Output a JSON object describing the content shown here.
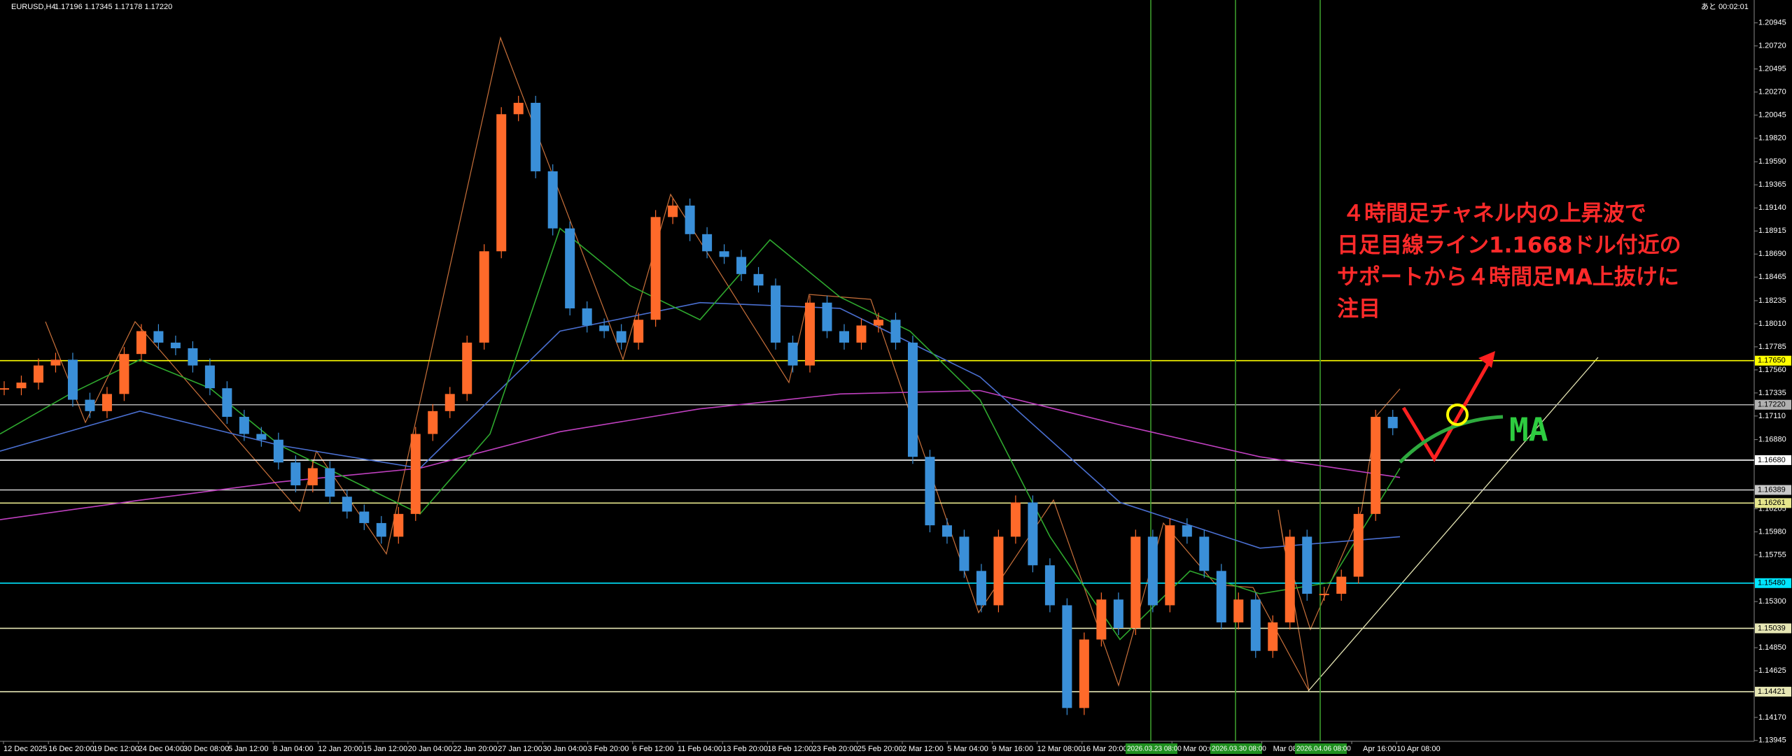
{
  "header": {
    "symbol": "EURUSD,H4",
    "ohlc": "1.17196 1.17345 1.17178 1.17220",
    "timer": "あと 00:02:01"
  },
  "chart_data": {
    "type": "candlestick",
    "up_color": "#ff6a2a",
    "down_color": "#3a8fd8",
    "ylim": [
      1.13937,
      1.21168
    ],
    "yticks": [
      1.20945,
      {
        "value": 1.2072,
        "label": "1.20720"
      },
      1.20495,
      {
        "value": 1.2027,
        "label": "1.20270"
      },
      1.20045,
      {
        "value": 1.1982,
        "label": "1.19820"
      },
      {
        "value": 1.1959,
        "label": "1.19590"
      },
      1.19365,
      {
        "value": 1.1914,
        "label": "1.19140"
      },
      1.18915,
      {
        "value": 1.1869,
        "label": "1.18690"
      },
      1.18465,
      1.18235,
      {
        "value": 1.1801,
        "label": "1.18010"
      },
      1.17785,
      {
        "value": 1.1756,
        "label": "1.17560"
      },
      1.17335,
      {
        "value": 1.1711,
        "label": "1.17110"
      },
      {
        "value": 1.1688,
        "label": "1.16880"
      },
      1.16205,
      {
        "value": 1.1598,
        "label": "1.15980"
      },
      1.15755,
      {
        "value": 1.153,
        "label": "1.15300"
      },
      {
        "value": 1.1485,
        "label": "1.14850"
      },
      1.14625,
      {
        "value": 1.1417,
        "label": "1.14170"
      },
      1.13945
    ],
    "xtick_labels": [
      "12 Dec 2025",
      "16 Dec 20:00",
      "19 Dec 12:00",
      "24 Dec 04:00",
      "30 Dec 08:00",
      "5 Jan 12:00",
      "8 Jan 04:00",
      "12 Jan 20:00",
      "15 Jan 12:00",
      "20 Jan 04:00",
      "22 Jan 20:00",
      "27 Jan 12:00",
      "30 Jan 04:00",
      "3 Feb 20:00",
      "6 Feb 12:00",
      "11 Feb 04:00",
      "13 Feb 20:00",
      "18 Feb 12:00",
      "23 Feb 20:00",
      "25 Feb 20:00",
      "2 Mar 12:00",
      "5 Mar 04:00",
      "9 Mar 16:00",
      "12 Mar 08:00",
      "16 Mar 20:00",
      null,
      "Mar 00:00",
      null,
      "Mar 08:00",
      null,
      "Apr 16:00",
      "10 Apr 08:00"
    ],
    "values": [
      1.17381,
      1.17436,
      1.17603,
      1.17659,
      1.17269,
      1.17158,
      1.17325,
      1.17715,
      1.17938,
      1.17826,
      1.17771,
      1.17603,
      1.17381,
      1.17102,
      1.16935,
      1.16879,
      1.16657,
      1.16434,
      1.16601,
      1.16323,
      1.16178,
      1.16066,
      1.15933,
      1.16155,
      1.16935,
      1.17158,
      1.17325,
      1.17826,
      1.18717,
      1.20054,
      1.20165,
      1.19497,
      1.1894,
      1.1816,
      1.17993,
      1.17938,
      1.17826,
      1.18049,
      1.19051,
      1.19163,
      1.18884,
      1.18717,
      1.18662,
      1.18495,
      1.18383,
      1.17826,
      1.17603,
      1.18216,
      1.17938,
      1.17826,
      1.17993,
      1.18049,
      1.17826,
      1.16712,
      1.16044,
      1.15933,
      1.15599,
      1.15264,
      1.15933,
      1.16267,
      1.15654,
      1.15264,
      1.14262,
      1.1493,
      1.1532,
      1.15042,
      1.15933,
      1.15264,
      1.16044,
      1.15933,
      1.15599,
      1.15097,
      1.1532,
      1.14819,
      1.15097,
      1.15933,
      1.15376,
      1.15376,
      1.15543,
      1.16155,
      1.17102,
      1.16991
    ],
    "moving_averages": [
      {
        "color": "#c040c0",
        "values": [
          1.16099,
          1.16289,
          1.16467,
          1.16601,
          1.16957,
          1.1718,
          1.17325,
          1.17358,
          1.17024,
          1.16712,
          1.16511
        ]
      },
      {
        "color": "#4a6fd0",
        "values": [
          1.16767,
          1.17158,
          1.16823,
          1.16601,
          1.17938,
          1.18216,
          1.1816,
          1.17492,
          1.16267,
          1.15821,
          1.15933
        ]
      },
      {
        "color": "#2ea82e",
        "values": [
          1.16935,
          1.17325,
          1.17659,
          1.17381,
          1.16823,
          1.16489,
          1.16155,
          1.16935,
          1.1894,
          1.18383,
          1.18049,
          1.18828,
          1.18271,
          1.17938,
          1.17269,
          1.15933,
          1.1493,
          1.15599,
          1.15376,
          1.15486,
          1.16601
        ]
      }
    ],
    "levels": [
      {
        "value": 1.1765,
        "label": "1.17650",
        "color": "#ffff00"
      },
      {
        "value": 1.1722,
        "label": "1.17220",
        "color": "#b0b0b0"
      },
      {
        "value": 1.1668,
        "label": "1.16680",
        "color": "#ffffff"
      },
      {
        "value": 1.16389,
        "label": "1.16389",
        "color": "#c8c8c8"
      },
      {
        "value": 1.16261,
        "label": "1.16261",
        "color": "#e6e68c"
      },
      {
        "value": 1.1548,
        "label": "1.15480",
        "color": "#00e5ff"
      },
      {
        "value": 1.15039,
        "label": "1.15039",
        "color": "#e6e6b4"
      },
      {
        "value": 1.14421,
        "label": "1.14421",
        "color": "#e6e6b4"
      }
    ],
    "markers": [
      {
        "label": "2026.03.23 08:00"
      },
      {
        "label": "2026.03.30 08:00"
      },
      {
        "label": "2026.04.06 08:00"
      }
    ],
    "annotation": [
      "４時間足チャネル内の上昇波で",
      "日足目線ライン1.1668ドル付近の",
      "サポートから４時間足MA上抜けに",
      "注目"
    ],
    "ma_label": "MA"
  }
}
